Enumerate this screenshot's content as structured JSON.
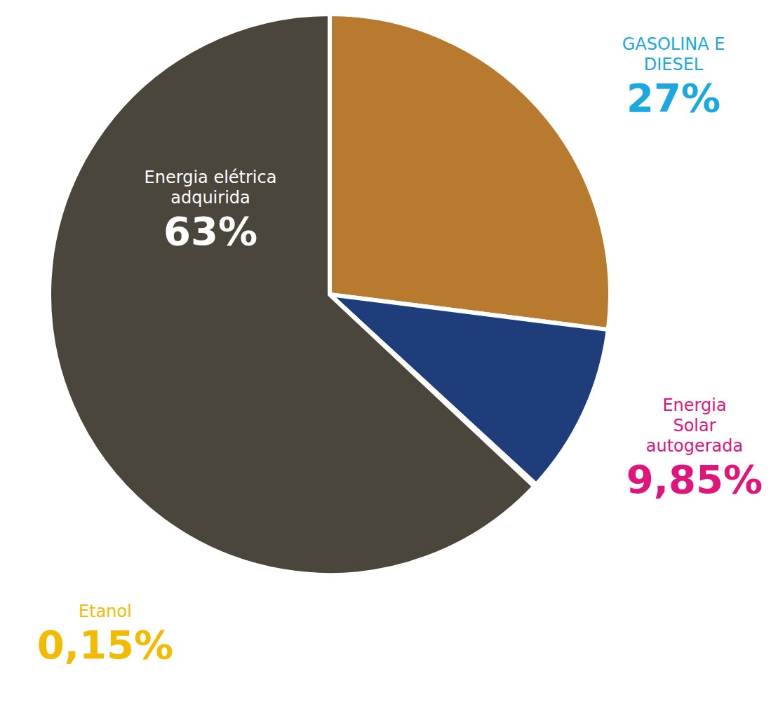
{
  "chart_data": {
    "type": "pie",
    "categories": [
      "GASOLINA E DIESEL",
      "Energia Solar autogerada",
      "Etanol",
      "Energia elétrica adquirida"
    ],
    "values": [
      27,
      9.85,
      0.15,
      63
    ],
    "value_labels": [
      "27%",
      "9,85%",
      "0,15%",
      "63%"
    ],
    "colors": [
      "#b87a2e",
      "#1f3d7a",
      "#5c8f2f",
      "#4a463c"
    ],
    "data_labels": true
  }
}
